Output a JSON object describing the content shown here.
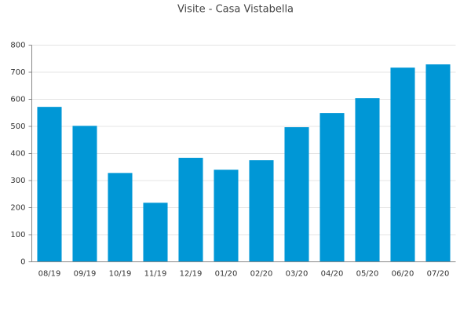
{
  "chart_data": {
    "type": "bar",
    "title": "Visite - Casa Vistabella",
    "categories": [
      "08/19",
      "09/19",
      "10/19",
      "11/19",
      "12/19",
      "01/20",
      "02/20",
      "03/20",
      "04/20",
      "05/20",
      "06/20",
      "07/20"
    ],
    "values": [
      572,
      502,
      328,
      218,
      384,
      340,
      375,
      497,
      549,
      604,
      717,
      729
    ],
    "color": "#0097d6",
    "ylim": [
      0,
      800
    ],
    "yticks": [
      0,
      100,
      200,
      300,
      400,
      500,
      600,
      700,
      800
    ],
    "grid": true
  }
}
